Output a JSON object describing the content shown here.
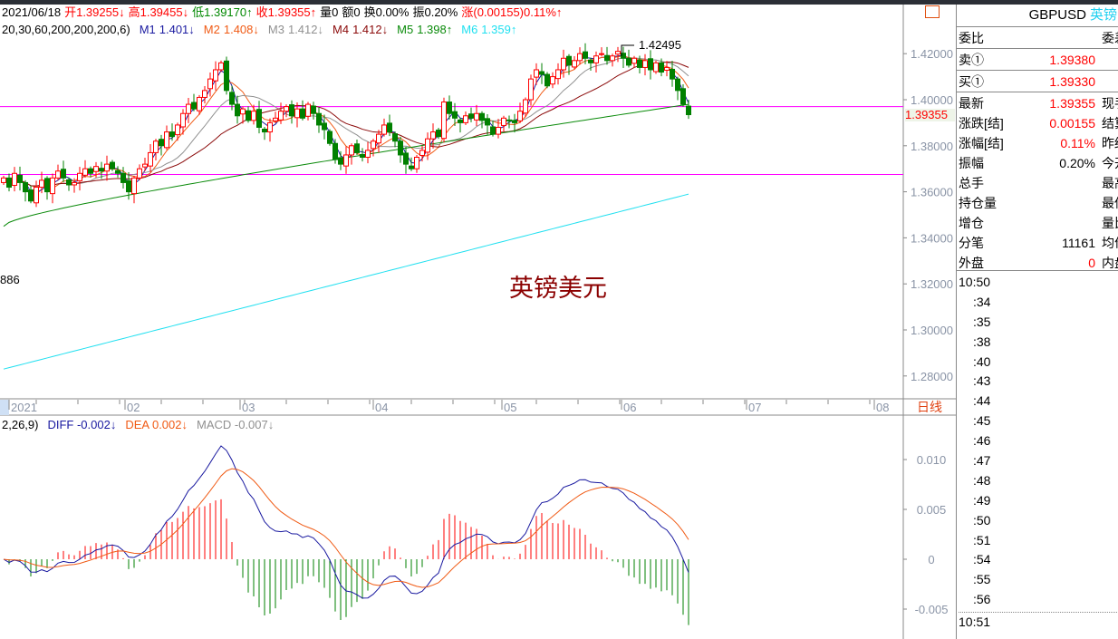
{
  "header": {
    "date": "2021/06/18",
    "open_label": "开",
    "open": "1.39255↓",
    "high_label": "高",
    "high": "1.39455↓",
    "low_label": "低",
    "low": "1.39170↑",
    "close_label": "收",
    "close": "1.39355↑",
    "vol": "量0",
    "amount": "额0",
    "turnover": "换0.00%",
    "amplitude": "振0.20%",
    "change": "涨(0.00155)0.11%↑"
  },
  "ma": {
    "params": "20,30,60,200,200,200,6)",
    "items": [
      {
        "label": "M1",
        "value": "1.401↓",
        "color": "#1a1aa0"
      },
      {
        "label": "M2",
        "value": "1.408↓",
        "color": "#f05a14"
      },
      {
        "label": "M3",
        "value": "1.412↓",
        "color": "#909090"
      },
      {
        "label": "M4",
        "value": "1.412↓",
        "color": "#8b0a0a"
      },
      {
        "label": "M5",
        "value": "1.398↑",
        "color": "#0a8a0a"
      },
      {
        "label": "M6",
        "value": "1.359↑",
        "color": "#20e0f0"
      }
    ]
  },
  "macd": {
    "params": "2,26,9)",
    "diff": "DIFF -0.002↓",
    "dea": "DEA 0.002↓",
    "macd": "MACD -0.007↓"
  },
  "chart": {
    "closes": [
      1.366,
      1.362,
      1.368,
      1.364,
      1.36,
      1.356,
      1.362,
      1.365,
      1.36,
      1.366,
      1.369,
      1.366,
      1.363,
      1.364,
      1.368,
      1.37,
      1.368,
      1.371,
      1.369,
      1.372,
      1.37,
      1.368,
      1.364,
      1.36,
      1.366,
      1.37,
      1.372,
      1.377,
      1.382,
      1.38,
      1.386,
      1.384,
      1.389,
      1.394,
      1.398,
      1.396,
      1.401,
      1.404,
      1.409,
      1.413,
      1.416,
      1.404,
      1.398,
      1.393,
      1.396,
      1.391,
      1.395,
      1.388,
      1.386,
      1.39,
      1.392,
      1.395,
      1.397,
      1.393,
      1.396,
      1.392,
      1.398,
      1.394,
      1.389,
      1.387,
      1.381,
      1.374,
      1.372,
      1.376,
      1.38,
      1.377,
      1.375,
      1.378,
      1.382,
      1.385,
      1.389,
      1.386,
      1.382,
      1.376,
      1.372,
      1.37,
      1.375,
      1.378,
      1.383,
      1.386,
      1.384,
      1.399,
      1.394,
      1.392,
      1.39,
      1.393,
      1.392,
      1.394,
      1.391,
      1.389,
      1.385,
      1.388,
      1.392,
      1.391,
      1.39,
      1.395,
      1.4,
      1.409,
      1.413,
      1.411,
      1.406,
      1.41,
      1.413,
      1.418,
      1.415,
      1.417,
      1.42,
      1.418,
      1.416,
      1.419,
      1.42,
      1.417,
      1.419,
      1.421,
      1.418,
      1.415,
      1.418,
      1.414,
      1.417,
      1.413,
      1.416,
      1.412,
      1.414,
      1.409,
      1.404,
      1.398,
      1.3935
    ],
    "m5_range": [
      1.345,
      1.398
    ],
    "m6_range": [
      1.283,
      1.359
    ],
    "hlines": [
      1.397,
      1.3675
    ],
    "price_ticks": [
      "1.42000",
      "1.40000",
      "1.38000",
      "1.36000",
      "1.34000",
      "1.32000",
      "1.30000",
      "1.28000"
    ],
    "price_tick_values": [
      1.42,
      1.4,
      1.38,
      1.36,
      1.34,
      1.32,
      1.3,
      1.28
    ],
    "current_price": "1.39355",
    "max_label": "1.42495",
    "min_label": "886",
    "watermark": "英镑美元",
    "months": [
      "2021",
      "02",
      "03",
      "04",
      "05",
      "06",
      "07",
      "08"
    ],
    "period": "日线",
    "macd_ticks": [
      "0.010",
      "0.005",
      "0",
      "-0.005"
    ],
    "macd_tick_values": [
      0.01,
      0.005,
      0,
      -0.005
    ],
    "up_color": "#ff0000",
    "down_color": "#008000",
    "hline_color": "#ff00ff"
  },
  "panel": {
    "symbol": "GBPUSD",
    "name": "英镑",
    "rows": [
      {
        "k": "委比",
        "v": "",
        "k2": "委差"
      },
      {
        "k": "卖①",
        "v": "1.39380",
        "k2": ""
      },
      {
        "k": "买①",
        "v": "1.39330",
        "k2": ""
      },
      {
        "k": "最新",
        "v": "1.39355",
        "k2": "现手"
      },
      {
        "k": "涨跌[结]",
        "v": "0.00155",
        "k2": "结算"
      },
      {
        "k": "涨幅[结]",
        "v": "0.11%",
        "k2": "昨结"
      },
      {
        "k": "振幅",
        "v": "0.20%",
        "k2": "今开"
      },
      {
        "k": "总手",
        "v": "",
        "k2": "最高"
      },
      {
        "k": "持仓量",
        "v": "",
        "k2": "最低"
      },
      {
        "k": "增仓",
        "v": "",
        "k2": "量比"
      },
      {
        "k": "分笔",
        "v": "11161",
        "k2": "均价"
      },
      {
        "k": "外盘",
        "v": "0",
        "k2": "内盘"
      }
    ],
    "times": [
      "10:50",
      ":34",
      ":35",
      ":38",
      ":40",
      ":43",
      ":44",
      ":45",
      ":46",
      ":47",
      ":48",
      ":49",
      ":50",
      ":51",
      ":54",
      ":55",
      ":56",
      "10:51"
    ]
  }
}
